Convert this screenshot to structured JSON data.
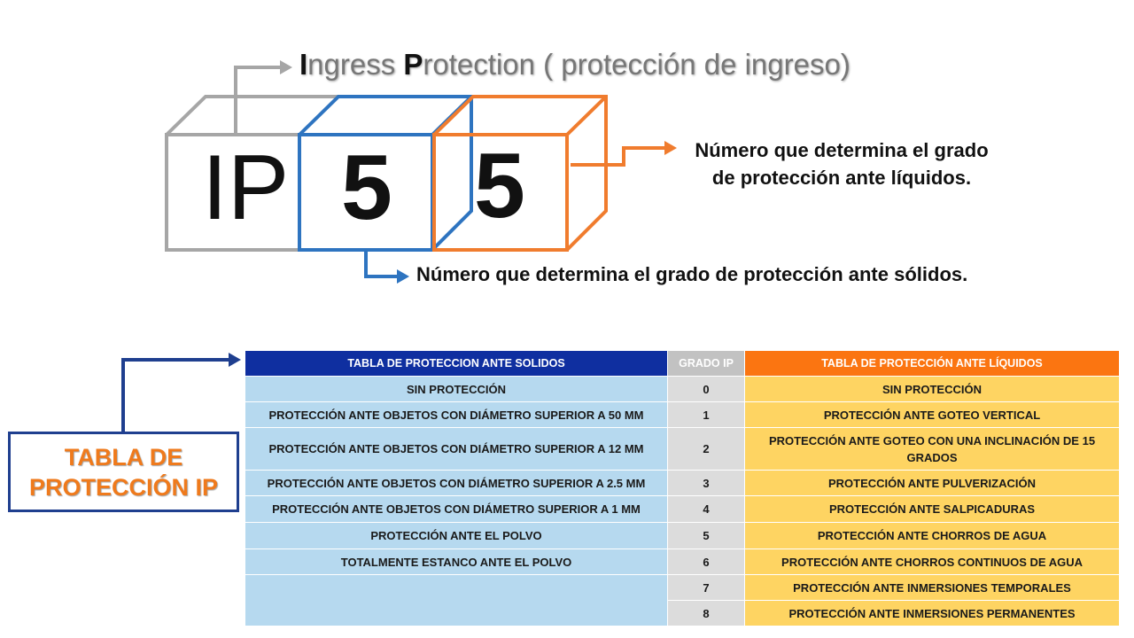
{
  "title": {
    "first_letter_1": "I",
    "rest_1": "ngress ",
    "first_letter_2": "P",
    "rest_2": "rotection ( protección de ingreso)"
  },
  "code": {
    "prefix": "IP",
    "solid_digit": "5",
    "liquid_digit": "5"
  },
  "notes": {
    "liquids_line1": "Número que determina el grado",
    "liquids_line2": "de protección ante líquidos.",
    "solids": "Número que determina el grado de protección ante sólidos."
  },
  "table_label": {
    "line1": "TABLA DE",
    "line2": "PROTECCIÓN IP"
  },
  "colors": {
    "ip_box": "#a6a6a6",
    "solid_box": "#2e74c0",
    "liquid_box": "#f07c2e",
    "label_border": "#1f3f8f",
    "label_text": "#ef7a1c"
  },
  "table": {
    "headers": {
      "solids": "TABLA DE PROTECCION ANTE SOLIDOS",
      "grade": "GRADO IP",
      "liquids": "TABLA DE PROTECCIÓN ANTE LÍQUIDOS"
    },
    "rows": [
      {
        "solid": "SIN PROTECCIÓN",
        "grade": "0",
        "liquid": "SIN PROTECCIÓN"
      },
      {
        "solid": "PROTECCIÓN ANTE OBJETOS CON DIÁMETRO SUPERIOR A 50 MM",
        "grade": "1",
        "liquid": "PROTECCIÓN ANTE GOTEO VERTICAL"
      },
      {
        "solid": "PROTECCIÓN ANTE OBJETOS CON DIÁMETRO SUPERIOR A 12 MM",
        "grade": "2",
        "liquid": "PROTECCIÓN ANTE GOTEO CON UNA INCLINACIÓN DE 15 GRADOS"
      },
      {
        "solid": "PROTECCIÓN ANTE OBJETOS CON DIÁMETRO SUPERIOR A 2.5 MM",
        "grade": "3",
        "liquid": "PROTECCIÓN ANTE PULVERIZACIÓN"
      },
      {
        "solid": "PROTECCIÓN ANTE OBJETOS CON DIÁMETRO SUPERIOR A 1 MM",
        "grade": "4",
        "liquid": "PROTECCIÓN ANTE SALPICADURAS"
      },
      {
        "solid": "PROTECCIÓN ANTE EL POLVO",
        "grade": "5",
        "liquid": "PROTECCIÓN ANTE CHORROS DE AGUA"
      },
      {
        "solid": "TOTALMENTE ESTANCO ANTE EL POLVO",
        "grade": "6",
        "liquid": "PROTECCIÓN ANTE CHORROS CONTINUOS DE AGUA"
      },
      {
        "solid": "",
        "grade": "7",
        "liquid": "PROTECCIÓN ANTE INMERSIONES TEMPORALES"
      },
      {
        "grade": "8",
        "liquid": "PROTECCIÓN ANTE INMERSIONES PERMANENTES"
      }
    ]
  }
}
